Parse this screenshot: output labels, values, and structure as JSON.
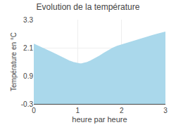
{
  "chart_data": {
    "type": "area",
    "title": "Evolution de la température",
    "xlabel": "heure par heure",
    "ylabel": "Température en °C",
    "x": [
      0,
      0.1,
      0.2,
      0.3,
      0.4,
      0.5,
      0.6,
      0.7,
      0.8,
      0.9,
      1.0,
      1.05,
      1.1,
      1.2,
      1.3,
      1.4,
      1.5,
      1.6,
      1.7,
      1.8,
      1.9,
      2.0,
      2.1,
      2.2,
      2.3,
      2.4,
      2.5,
      2.6,
      2.7,
      2.8,
      2.9,
      3.0
    ],
    "values": [
      2.25,
      2.17,
      2.09,
      2.0,
      1.91,
      1.82,
      1.72,
      1.63,
      1.54,
      1.47,
      1.42,
      1.41,
      1.42,
      1.46,
      1.54,
      1.63,
      1.74,
      1.86,
      1.98,
      2.08,
      2.16,
      2.22,
      2.28,
      2.34,
      2.4,
      2.46,
      2.52,
      2.57,
      2.62,
      2.67,
      2.72,
      2.77
    ],
    "color": "#aad8eb",
    "xlim": [
      0,
      3
    ],
    "ylim": [
      -0.3,
      3.3
    ],
    "xticks": [
      0,
      1,
      2,
      3
    ],
    "yticks": [
      -0.3,
      0.9,
      2.1,
      3.3
    ],
    "grid": true
  }
}
